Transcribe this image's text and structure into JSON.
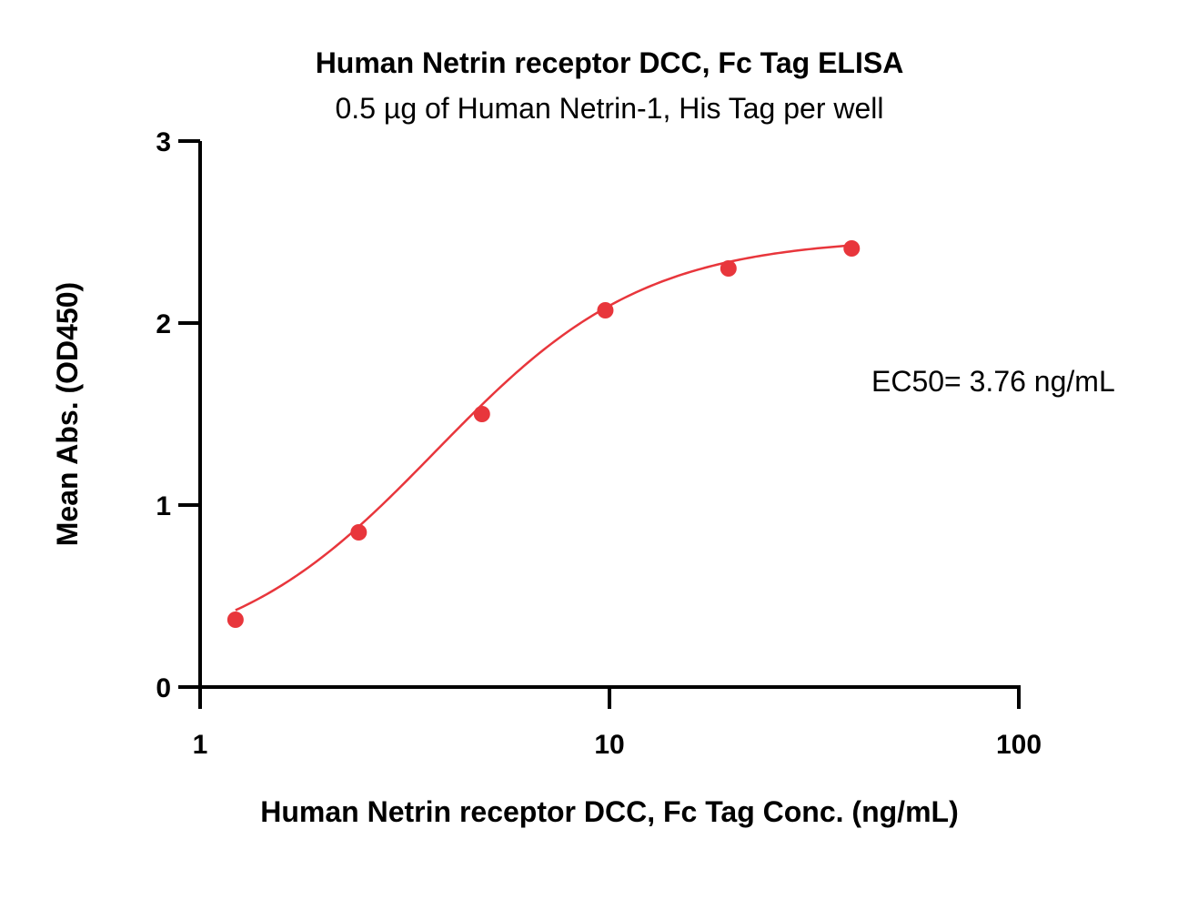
{
  "chart_data": {
    "type": "scatter",
    "title": "Human Netrin receptor DCC, Fc Tag ELISA",
    "subtitle": "0.5 µg of Human Netrin-1, His Tag per well",
    "xlabel": "Human Netrin receptor DCC, Fc Tag Conc. (ng/mL)",
    "ylabel": "Mean Abs. (OD450)",
    "xscale": "log",
    "xlim": [
      1,
      100
    ],
    "ylim": [
      0,
      3
    ],
    "x_ticks": [
      1,
      10,
      100
    ],
    "x_tick_labels": [
      "1",
      "10",
      "100"
    ],
    "y_ticks": [
      0,
      1,
      2,
      3
    ],
    "y_tick_labels": [
      "0",
      "1",
      "2",
      "3"
    ],
    "grid": false,
    "series": [
      {
        "x": [
          1.22,
          2.44,
          4.88,
          9.77,
          19.53,
          39.06
        ],
        "y": [
          0.37,
          0.85,
          1.5,
          2.07,
          2.3,
          2.41
        ],
        "color": "#e8363c",
        "fit": "4PL sigmoidal curve"
      }
    ],
    "fit_params": {
      "bottom": 0.12,
      "top": 2.47,
      "ec50": 3.76,
      "hill": 1.7
    },
    "annotation": "EC50= 3.76 ng/mL"
  }
}
